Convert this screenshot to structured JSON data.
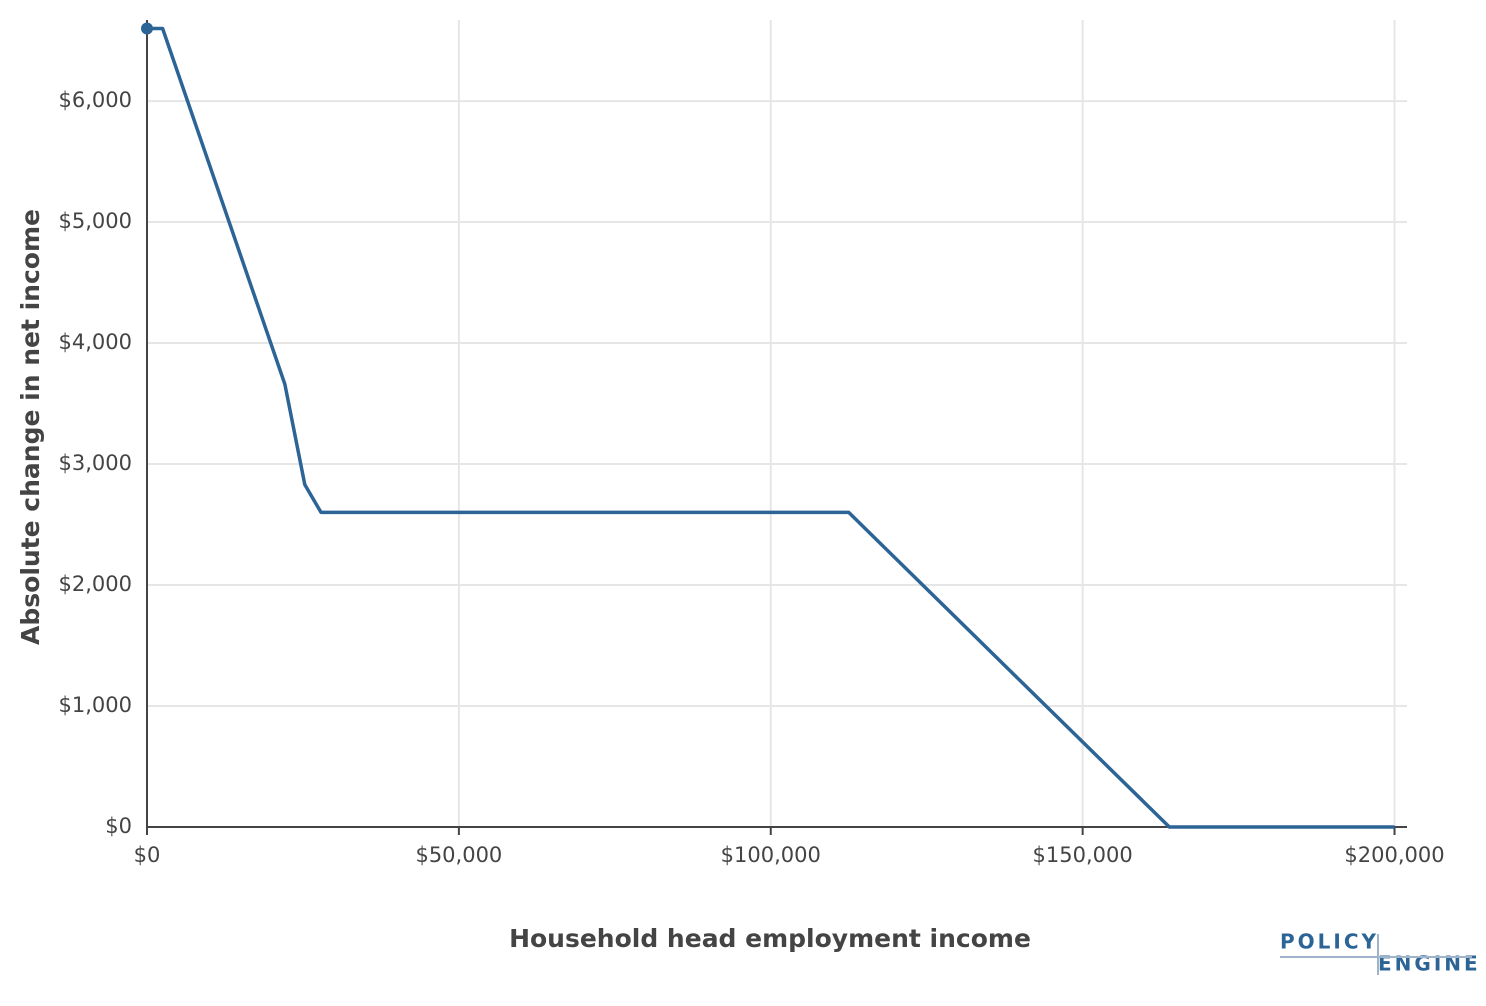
{
  "chart_data": {
    "type": "line",
    "x_label": "Household head employment income",
    "y_label": "Absolute change in net income",
    "x": [
      0,
      2500,
      22100,
      25300,
      27900,
      112500,
      163900,
      200000
    ],
    "series": [
      {
        "color": "#2c6496",
        "values": [
          6600,
          6600,
          3660,
          2830,
          2600,
          2600,
          0,
          0
        ]
      }
    ],
    "xlim": [
      0,
      202000
    ],
    "ylim": [
      0,
      6670
    ],
    "xticks": [
      {
        "value": 0,
        "label": "$0"
      },
      {
        "value": 50000,
        "label": "$50,000"
      },
      {
        "value": 100000,
        "label": "$100,000"
      },
      {
        "value": 150000,
        "label": "$150,000"
      },
      {
        "value": 200000,
        "label": "$200,000"
      }
    ],
    "yticks": [
      {
        "value": 0,
        "label": "$0"
      },
      {
        "value": 1000,
        "label": "$1,000"
      },
      {
        "value": 2000,
        "label": "$2,000"
      },
      {
        "value": 3000,
        "label": "$3,000"
      },
      {
        "value": 4000,
        "label": "$4,000"
      },
      {
        "value": 5000,
        "label": "$5,000"
      },
      {
        "value": 6000,
        "label": "$6,000"
      }
    ],
    "grid": true
  },
  "logo": {
    "top": "POLICY",
    "bottom": "ENGINE"
  }
}
